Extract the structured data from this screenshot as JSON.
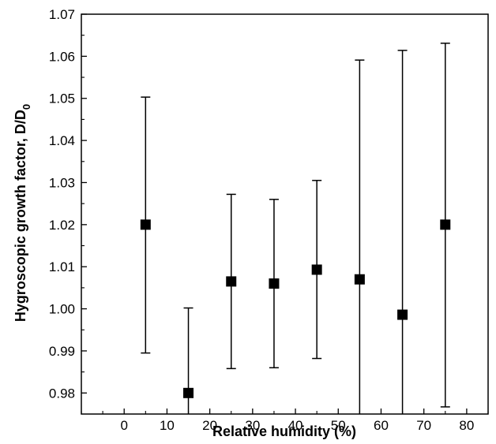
{
  "chart_data": {
    "type": "scatter",
    "xlabel": "Relative humidity (%)",
    "ylabel_main": "Hygroscopic growth factor, D/D",
    "ylabel_sub": "0",
    "xlim": [
      -10,
      85
    ],
    "ylim": [
      0.975,
      1.07
    ],
    "xticks": [
      0,
      10,
      20,
      30,
      40,
      50,
      60,
      70,
      80
    ],
    "yticks": [
      0.98,
      0.99,
      1.0,
      1.01,
      1.02,
      1.03,
      1.04,
      1.05,
      1.06,
      1.07
    ],
    "ytick_labels": [
      "0.98",
      "0.99",
      "1.00",
      "1.01",
      "1.02",
      "1.03",
      "1.04",
      "1.05",
      "1.06",
      "1.07"
    ],
    "grid": false,
    "marker": "square",
    "marker_color": "#000000",
    "points": [
      {
        "x": 5,
        "y": 1.02,
        "err_low": 0.9895,
        "err_high": 1.0503
      },
      {
        "x": 15,
        "y": 0.98,
        "err_low": 0.975,
        "err_high": 1.0002
      },
      {
        "x": 25,
        "y": 1.0065,
        "err_low": 0.9858,
        "err_high": 1.0272
      },
      {
        "x": 35,
        "y": 1.006,
        "err_low": 0.986,
        "err_high": 1.026
      },
      {
        "x": 45,
        "y": 1.0093,
        "err_low": 0.9882,
        "err_high": 1.0305
      },
      {
        "x": 55,
        "y": 1.007,
        "err_low": 0.975,
        "err_high": 1.0591
      },
      {
        "x": 65,
        "y": 0.9986,
        "err_low": 0.975,
        "err_high": 1.0614
      },
      {
        "x": 75,
        "y": 1.02,
        "err_low": 0.9767,
        "err_high": 1.0631
      }
    ]
  }
}
